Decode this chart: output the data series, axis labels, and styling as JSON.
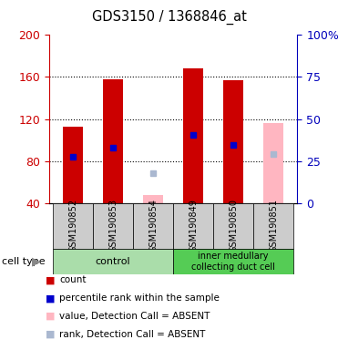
{
  "title": "GDS3150 / 1368846_at",
  "samples": [
    "GSM190852",
    "GSM190853",
    "GSM190854",
    "GSM190849",
    "GSM190850",
    "GSM190851"
  ],
  "left_ylim": [
    40,
    200
  ],
  "left_yticks": [
    40,
    80,
    120,
    160,
    200
  ],
  "right_ylim": [
    0,
    100
  ],
  "right_yticks": [
    0,
    25,
    50,
    75,
    100
  ],
  "right_yticklabels": [
    "0",
    "25",
    "50",
    "75",
    "100%"
  ],
  "bar_width": 0.5,
  "counts": [
    113,
    158,
    null,
    168,
    157,
    null
  ],
  "percentiles_left": [
    84,
    93,
    null,
    105,
    95,
    null
  ],
  "absent_values_left": [
    null,
    null,
    48,
    null,
    null,
    116
  ],
  "absent_ranks_left": [
    null,
    null,
    68,
    null,
    null,
    87
  ],
  "count_color": "#cc0000",
  "percentile_color": "#0000cc",
  "absent_value_color": "#ffb6c1",
  "absent_rank_color": "#aab8d0",
  "axis_left_color": "#cc0000",
  "axis_right_color": "#0000bb",
  "group1_color": "#aaddaa",
  "group2_color": "#55cc55",
  "sample_box_color": "#cccccc",
  "legend_items": [
    {
      "color": "#cc0000",
      "label": "count"
    },
    {
      "color": "#0000cc",
      "label": "percentile rank within the sample"
    },
    {
      "color": "#ffb6c1",
      "label": "value, Detection Call = ABSENT"
    },
    {
      "color": "#aab8d0",
      "label": "rank, Detection Call = ABSENT"
    }
  ]
}
